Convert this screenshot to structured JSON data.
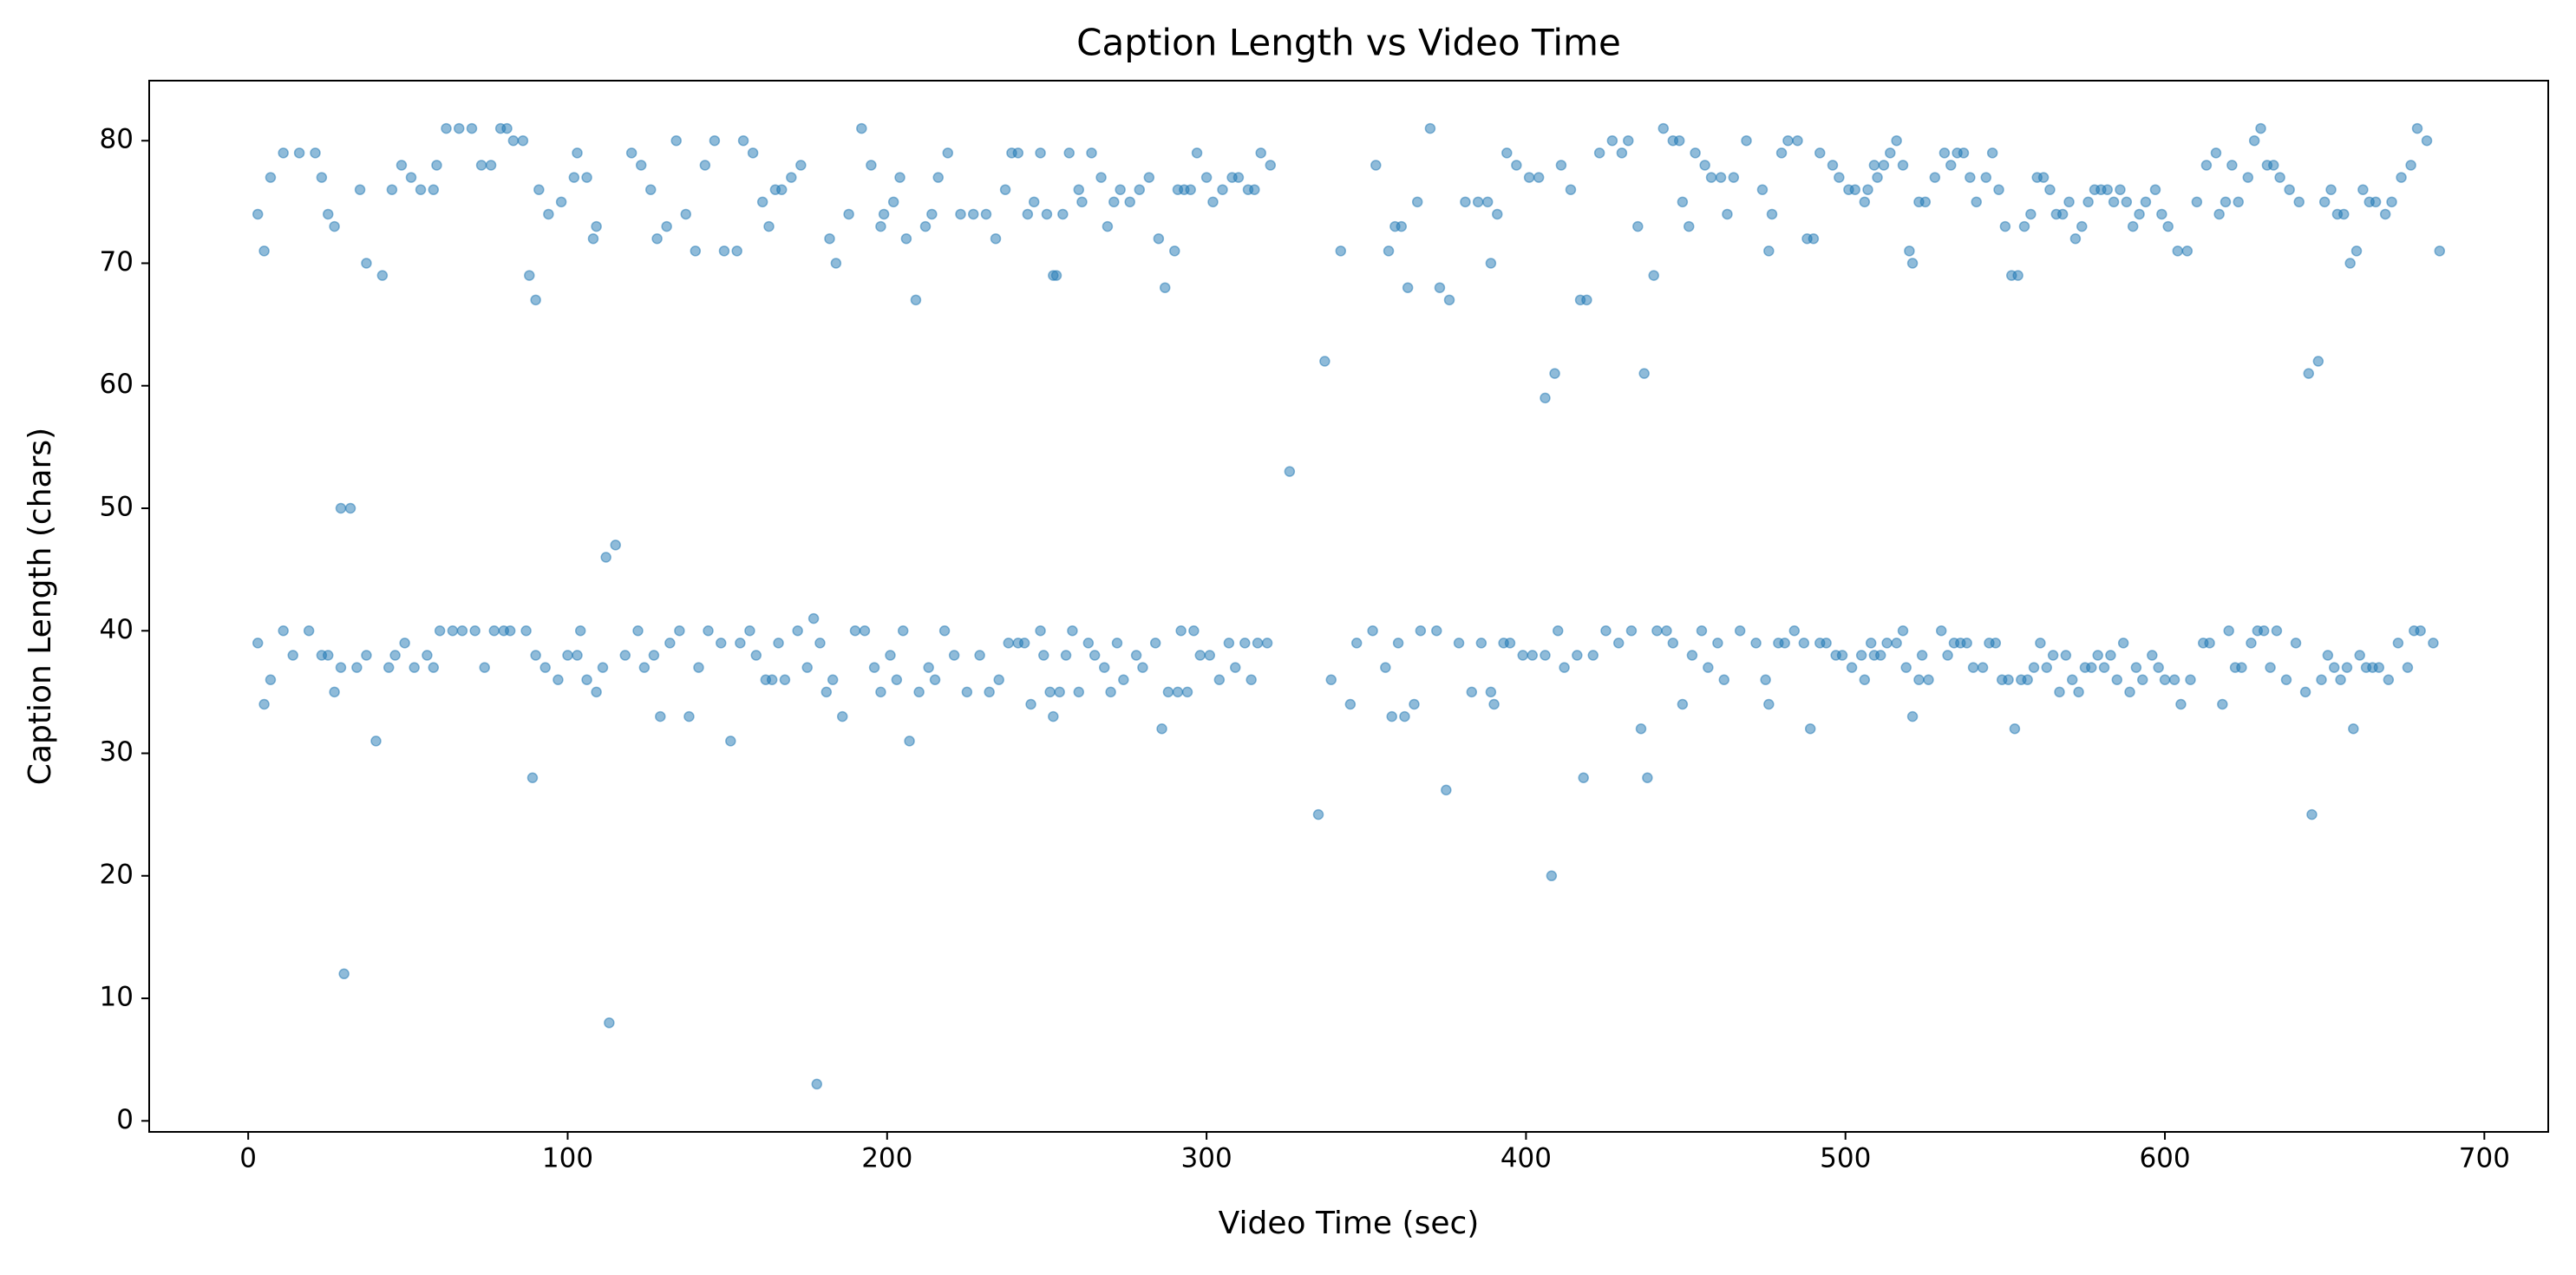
{
  "chart_data": {
    "type": "scatter",
    "title": "Caption Length vs Video Time",
    "x_label": "Video Time (sec)",
    "y_label": "Caption Length (chars)",
    "color": "#1f77b4",
    "xlim": [
      -31,
      720
    ],
    "ylim": [
      -0.9,
      84.9
    ],
    "xticks": [
      0,
      100,
      200,
      300,
      400,
      500,
      600,
      700
    ],
    "yticks": [
      0,
      10,
      20,
      30,
      40,
      50,
      60,
      70,
      80
    ],
    "grid": false,
    "x": [
      3,
      3,
      5,
      5,
      7,
      7,
      11,
      11,
      14,
      16,
      19,
      21,
      23,
      23,
      25,
      25,
      27,
      27,
      29,
      29,
      30,
      32,
      34,
      35,
      37,
      37,
      40,
      42,
      44,
      45,
      46,
      48,
      49,
      51,
      52,
      54,
      56,
      58,
      58,
      59,
      60,
      62,
      64,
      66,
      67,
      70,
      71,
      73,
      74,
      76,
      77,
      79,
      80,
      81,
      82,
      83,
      86,
      87,
      88,
      89,
      90,
      90,
      91,
      93,
      94,
      97,
      98,
      100,
      102,
      103,
      103,
      104,
      106,
      106,
      108,
      109,
      109,
      111,
      112,
      113,
      115,
      118,
      120,
      122,
      123,
      124,
      126,
      127,
      128,
      129,
      131,
      132,
      134,
      135,
      137,
      138,
      140,
      141,
      143,
      144,
      146,
      148,
      149,
      151,
      153,
      154,
      155,
      157,
      158,
      159,
      161,
      162,
      163,
      164,
      165,
      166,
      167,
      168,
      170,
      172,
      173,
      175,
      177,
      178,
      179,
      181,
      182,
      183,
      184,
      186,
      188,
      190,
      192,
      193,
      195,
      196,
      198,
      198,
      199,
      201,
      202,
      203,
      204,
      205,
      206,
      207,
      209,
      210,
      212,
      213,
      214,
      215,
      216,
      218,
      219,
      221,
      223,
      225,
      227,
      229,
      231,
      232,
      234,
      235,
      237,
      238,
      239,
      241,
      241,
      243,
      244,
      245,
      246,
      248,
      248,
      249,
      250,
      251,
      252,
      252,
      253,
      254,
      255,
      256,
      257,
      258,
      260,
      260,
      261,
      263,
      264,
      265,
      267,
      268,
      269,
      270,
      271,
      272,
      273,
      274,
      276,
      278,
      279,
      280,
      282,
      284,
      285,
      286,
      287,
      288,
      290,
      291,
      291,
      292,
      293,
      294,
      295,
      296,
      297,
      298,
      300,
      301,
      302,
      304,
      305,
      307,
      308,
      309,
      310,
      312,
      313,
      314,
      315,
      316,
      317,
      319,
      320,
      326,
      335,
      337,
      339,
      342,
      345,
      347,
      352,
      353,
      356,
      357,
      358,
      359,
      360,
      361,
      362,
      363,
      365,
      366,
      367,
      370,
      372,
      373,
      375,
      376,
      379,
      381,
      383,
      385,
      386,
      388,
      389,
      389,
      390,
      391,
      393,
      394,
      395,
      397,
      399,
      401,
      402,
      404,
      406,
      406,
      408,
      409,
      410,
      411,
      412,
      414,
      416,
      417,
      418,
      419,
      421,
      423,
      425,
      427,
      429,
      430,
      432,
      433,
      435,
      436,
      437,
      438,
      440,
      441,
      443,
      444,
      446,
      446,
      448,
      449,
      449,
      451,
      452,
      453,
      455,
      456,
      457,
      458,
      460,
      461,
      462,
      463,
      465,
      467,
      469,
      472,
      474,
      475,
      476,
      476,
      477,
      479,
      480,
      481,
      482,
      484,
      485,
      487,
      488,
      489,
      490,
      492,
      492,
      494,
      496,
      497,
      498,
      499,
      501,
      502,
      503,
      505,
      506,
      506,
      507,
      508,
      509,
      509,
      510,
      511,
      512,
      513,
      514,
      516,
      516,
      518,
      518,
      519,
      520,
      521,
      521,
      523,
      523,
      524,
      525,
      526,
      528,
      530,
      531,
      532,
      533,
      534,
      535,
      536,
      537,
      538,
      539,
      540,
      541,
      543,
      544,
      545,
      546,
      547,
      548,
      549,
      550,
      551,
      552,
      553,
      554,
      555,
      556,
      557,
      558,
      559,
      560,
      561,
      562,
      563,
      564,
      565,
      566,
      567,
      568,
      569,
      570,
      571,
      572,
      573,
      574,
      575,
      576,
      577,
      578,
      579,
      580,
      581,
      582,
      583,
      584,
      585,
      586,
      587,
      588,
      589,
      590,
      591,
      592,
      593,
      594,
      596,
      597,
      598,
      599,
      600,
      601,
      603,
      604,
      605,
      607,
      608,
      610,
      612,
      613,
      614,
      616,
      617,
      618,
      619,
      620,
      621,
      622,
      623,
      624,
      626,
      627,
      628,
      629,
      630,
      631,
      632,
      633,
      634,
      635,
      636,
      638,
      639,
      641,
      642,
      644,
      645,
      646,
      648,
      649,
      650,
      651,
      652,
      653,
      654,
      655,
      656,
      657,
      658,
      659,
      660,
      661,
      662,
      663,
      664,
      665,
      666,
      667,
      669,
      670,
      671,
      673,
      674,
      676,
      677,
      678,
      679,
      680,
      682,
      684,
      686
    ],
    "values": [
      39,
      74,
      34,
      71,
      36,
      77,
      40,
      79,
      38,
      79,
      40,
      79,
      38,
      77,
      38,
      74,
      35,
      73,
      37,
      50,
      12,
      50,
      37,
      76,
      38,
      70,
      31,
      69,
      37,
      76,
      38,
      78,
      39,
      77,
      37,
      76,
      38,
      76,
      37,
      78,
      40,
      81,
      40,
      81,
      40,
      81,
      40,
      78,
      37,
      78,
      40,
      81,
      40,
      81,
      40,
      80,
      80,
      40,
      69,
      28,
      67,
      38,
      76,
      37,
      74,
      36,
      75,
      38,
      77,
      38,
      79,
      40,
      77,
      36,
      72,
      35,
      73,
      37,
      46,
      8,
      47,
      38,
      79,
      40,
      78,
      37,
      76,
      38,
      72,
      33,
      73,
      39,
      80,
      40,
      74,
      33,
      71,
      37,
      78,
      40,
      80,
      39,
      71,
      31,
      71,
      39,
      80,
      40,
      79,
      38,
      75,
      36,
      73,
      36,
      76,
      39,
      76,
      36,
      77,
      40,
      78,
      37,
      41,
      3,
      39,
      35,
      72,
      36,
      70,
      33,
      74,
      40,
      81,
      40,
      78,
      37,
      35,
      73,
      74,
      38,
      75,
      36,
      77,
      40,
      72,
      31,
      67,
      35,
      73,
      37,
      74,
      36,
      77,
      40,
      79,
      38,
      74,
      35,
      74,
      38,
      74,
      35,
      72,
      36,
      76,
      39,
      79,
      39,
      79,
      39,
      74,
      34,
      75,
      40,
      79,
      38,
      74,
      35,
      69,
      33,
      69,
      35,
      74,
      38,
      79,
      40,
      76,
      35,
      75,
      39,
      79,
      38,
      77,
      37,
      73,
      35,
      75,
      39,
      76,
      36,
      75,
      38,
      76,
      37,
      77,
      39,
      72,
      32,
      68,
      35,
      71,
      35,
      76,
      40,
      76,
      35,
      76,
      40,
      79,
      38,
      77,
      38,
      75,
      36,
      76,
      39,
      77,
      37,
      77,
      39,
      76,
      36,
      76,
      39,
      79,
      39,
      78,
      53,
      25,
      62,
      36,
      71,
      34,
      39,
      40,
      78,
      37,
      71,
      33,
      73,
      39,
      73,
      33,
      68,
      34,
      75,
      40,
      81,
      40,
      68,
      27,
      67,
      39,
      75,
      35,
      75,
      39,
      75,
      35,
      70,
      34,
      74,
      39,
      79,
      39,
      78,
      38,
      77,
      38,
      77,
      38,
      59,
      20,
      61,
      40,
      78,
      37,
      76,
      38,
      67,
      28,
      67,
      38,
      79,
      40,
      80,
      39,
      79,
      80,
      40,
      73,
      32,
      61,
      28,
      69,
      40,
      81,
      40,
      80,
      39,
      80,
      34,
      75,
      73,
      38,
      79,
      40,
      78,
      37,
      77,
      39,
      77,
      36,
      74,
      77,
      40,
      80,
      39,
      76,
      36,
      71,
      34,
      74,
      39,
      79,
      39,
      80,
      40,
      80,
      39,
      72,
      32,
      72,
      39,
      79,
      39,
      78,
      38,
      77,
      38,
      76,
      37,
      76,
      38,
      75,
      36,
      76,
      39,
      78,
      38,
      77,
      38,
      78,
      39,
      79,
      39,
      80,
      40,
      78,
      37,
      71,
      33,
      70,
      36,
      75,
      38,
      75,
      36,
      77,
      40,
      79,
      38,
      78,
      39,
      79,
      39,
      79,
      39,
      77,
      37,
      75,
      37,
      77,
      39,
      79,
      39,
      76,
      36,
      73,
      36,
      69,
      32,
      69,
      36,
      73,
      36,
      74,
      37,
      77,
      39,
      77,
      37,
      76,
      38,
      74,
      35,
      74,
      38,
      75,
      36,
      72,
      35,
      73,
      37,
      75,
      37,
      76,
      38,
      76,
      37,
      76,
      38,
      75,
      36,
      76,
      39,
      75,
      35,
      73,
      37,
      74,
      36,
      75,
      38,
      76,
      37,
      74,
      36,
      73,
      36,
      71,
      34,
      71,
      36,
      75,
      39,
      78,
      39,
      79,
      74,
      34,
      75,
      40,
      78,
      37,
      75,
      37,
      77,
      39,
      80,
      40,
      81,
      40,
      78,
      37,
      78,
      40,
      77,
      36,
      76,
      39,
      75,
      35,
      61,
      25,
      62,
      36,
      75,
      38,
      76,
      37,
      74,
      36,
      74,
      37,
      70,
      32,
      71,
      38,
      76,
      37,
      75,
      37,
      75,
      37,
      74,
      36,
      75,
      39,
      77,
      37,
      78,
      40,
      81,
      40,
      80,
      39,
      71
    ]
  }
}
